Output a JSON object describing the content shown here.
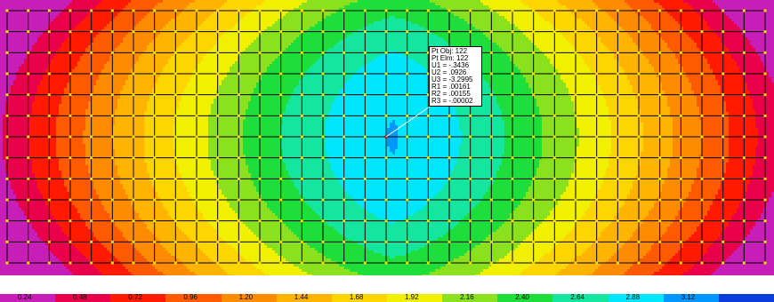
{
  "view": {
    "background": "#ffffff",
    "grid_line_color": "#000000",
    "node_color": "#ffe000",
    "selected_node_color": "#ff0000"
  },
  "contour_levels": [
    {
      "value": "0.24",
      "color": "#c81eb8"
    },
    {
      "value": "0.48",
      "color": "#e8004a"
    },
    {
      "value": "0.72",
      "color": "#ff1a00"
    },
    {
      "value": "0.96",
      "color": "#ff5a00"
    },
    {
      "value": "1.20",
      "color": "#ff8c00"
    },
    {
      "value": "1.44",
      "color": "#ffb400"
    },
    {
      "value": "1.68",
      "color": "#ffd500"
    },
    {
      "value": "1.92",
      "color": "#f0f000"
    },
    {
      "value": "2.16",
      "color": "#8ce11e"
    },
    {
      "value": "2.40",
      "color": "#1ede3c"
    },
    {
      "value": "2.64",
      "color": "#14e6a0"
    },
    {
      "value": "2.88",
      "color": "#00e6ff"
    },
    {
      "value": "3.12",
      "color": "#0096ff"
    },
    {
      "value": "",
      "color": "#0a3cdc"
    }
  ],
  "node_info": {
    "lines": [
      "Pt Obj: 122",
      "Pt Elm: 122",
      "U1 = -.3436",
      "U2 = .0926",
      "U3 = -3.2995",
      "R1 = .00161",
      "R2 = .00155",
      "R3 = -.00002"
    ]
  }
}
